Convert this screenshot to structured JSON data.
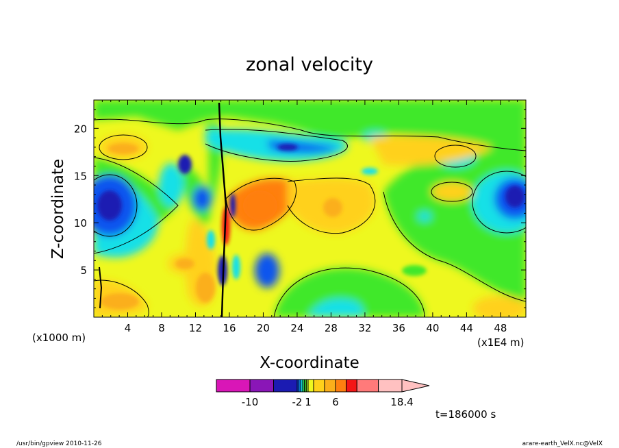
{
  "chart_data": {
    "type": "heatmap",
    "title": "zonal velocity",
    "xlabel": "X-coordinate",
    "ylabel": "Z-coordinate",
    "x_unit_label": "(x1E4 m)",
    "y_unit_label": "(x1000 m)",
    "xlim": [
      0,
      51
    ],
    "ylim": [
      0,
      23
    ],
    "x_ticks": [
      "4",
      "8",
      "12",
      "16",
      "20",
      "24",
      "28",
      "32",
      "36",
      "40",
      "44",
      "48"
    ],
    "y_ticks": [
      "5",
      "10",
      "15",
      "20"
    ],
    "colorbar": {
      "levels": [
        -14,
        -10,
        -6,
        -2,
        -1.5,
        -1,
        -0.5,
        0,
        0.5,
        1,
        2,
        4,
        6,
        8,
        10,
        14,
        18.4
      ],
      "colors": [
        "#d916b7",
        "#8a16b7",
        "#1b1bb2",
        "#0b55ee",
        "#0d94f5",
        "#16e0e7",
        "#28d45e",
        "#3fe82b",
        "#9ae62b",
        "#eef81f",
        "#ffd11a",
        "#fbaf1b",
        "#ff7f10",
        "#f41616",
        "#ff7a7a",
        "#ffc1c1"
      ],
      "tick_labels": [
        "-10",
        "-2",
        "1",
        "6",
        "18.4"
      ],
      "tick_values": [
        -10,
        -2,
        1,
        6,
        18.4
      ],
      "extend": "max"
    },
    "time_label": "t=186000 s"
  },
  "footer": {
    "left": "/usr/bin/gpview   2010-11-26",
    "right": "arare-earth_VelX.nc@VelX"
  }
}
